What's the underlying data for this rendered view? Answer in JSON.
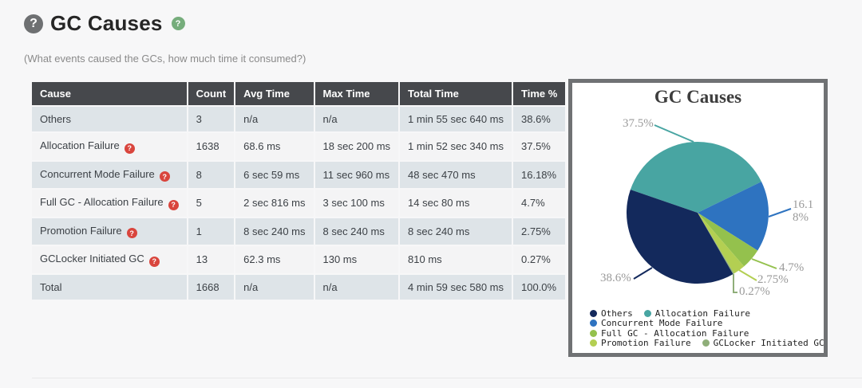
{
  "page": {
    "title": "GC Causes",
    "subtitle": "(What events caused the GCs, how much time it consumed?)"
  },
  "icons": {
    "question_glyph": "?"
  },
  "colors": {
    "page_bg": "#f7f7f8",
    "table_header_bg": "#46484c",
    "row_shaded_bg": "#dee4e8",
    "row_plain_bg": "#f4f4f5",
    "accent_red_help": "#d9453d",
    "title_icon_gray": "#6e7072",
    "title_help_green": "#76ad7c",
    "panel_border": "#707274"
  },
  "table": {
    "columns": [
      "Cause",
      "Count",
      "Avg Time",
      "Max Time",
      "Total Time",
      "Time %"
    ],
    "rows": [
      {
        "cause": "Others",
        "help": false,
        "count": "3",
        "avg": "n/a",
        "max": "n/a",
        "total": "1 min 55 sec 640 ms",
        "pct": "38.6%"
      },
      {
        "cause": "Allocation Failure",
        "help": true,
        "count": "1638",
        "avg": "68.6 ms",
        "max": "18 sec 200 ms",
        "total": "1 min 52 sec 340 ms",
        "pct": "37.5%"
      },
      {
        "cause": "Concurrent Mode Failure",
        "help": true,
        "count": "8",
        "avg": "6 sec 59 ms",
        "max": "11 sec 960 ms",
        "total": "48 sec 470 ms",
        "pct": "16.18%"
      },
      {
        "cause": "Full GC - Allocation Failure",
        "help": true,
        "count": "5",
        "avg": "2 sec 816 ms",
        "max": "3 sec 100 ms",
        "total": "14 sec 80 ms",
        "pct": "4.7%"
      },
      {
        "cause": "Promotion Failure",
        "help": true,
        "count": "1",
        "avg": "8 sec 240 ms",
        "max": "8 sec 240 ms",
        "total": "8 sec 240 ms",
        "pct": "2.75%"
      },
      {
        "cause": "GCLocker Initiated GC",
        "help": true,
        "count": "13",
        "avg": "62.3 ms",
        "max": "130 ms",
        "total": "810 ms",
        "pct": "0.27%"
      }
    ],
    "total_row": {
      "cause": "Total",
      "help": false,
      "count": "1668",
      "avg": "n/a",
      "max": "n/a",
      "total": "4 min 59 sec 580 ms",
      "pct": "100.0%"
    }
  },
  "chart_data": {
    "type": "pie",
    "title": "GC Causes",
    "slices": [
      {
        "label": "Others",
        "value": 38.6,
        "pct_label": "38.6%",
        "color": "#13295c"
      },
      {
        "label": "Allocation Failure",
        "value": 37.5,
        "pct_label": "37.5%",
        "color": "#48a5a2"
      },
      {
        "label": "Concurrent Mode Failure",
        "value": 16.18,
        "pct_label": "16.18%",
        "color": "#2e73c0"
      },
      {
        "label": "Full GC - Allocation Failure",
        "value": 4.7,
        "pct_label": "4.7%",
        "color": "#94c14d"
      },
      {
        "label": "Promotion Failure",
        "value": 2.75,
        "pct_label": "2.75%",
        "color": "#b3cf52"
      },
      {
        "label": "GCLocker Initiated GC",
        "value": 0.27,
        "pct_label": "0.27%",
        "color": "#8fae79"
      }
    ],
    "draw_order": [
      1,
      2,
      3,
      4,
      5,
      0
    ],
    "start_angle_deg": 161,
    "legend_rows": [
      [
        0,
        1
      ],
      [
        2
      ],
      [
        3
      ],
      [
        4,
        5
      ]
    ],
    "legend_position": "bottom"
  }
}
